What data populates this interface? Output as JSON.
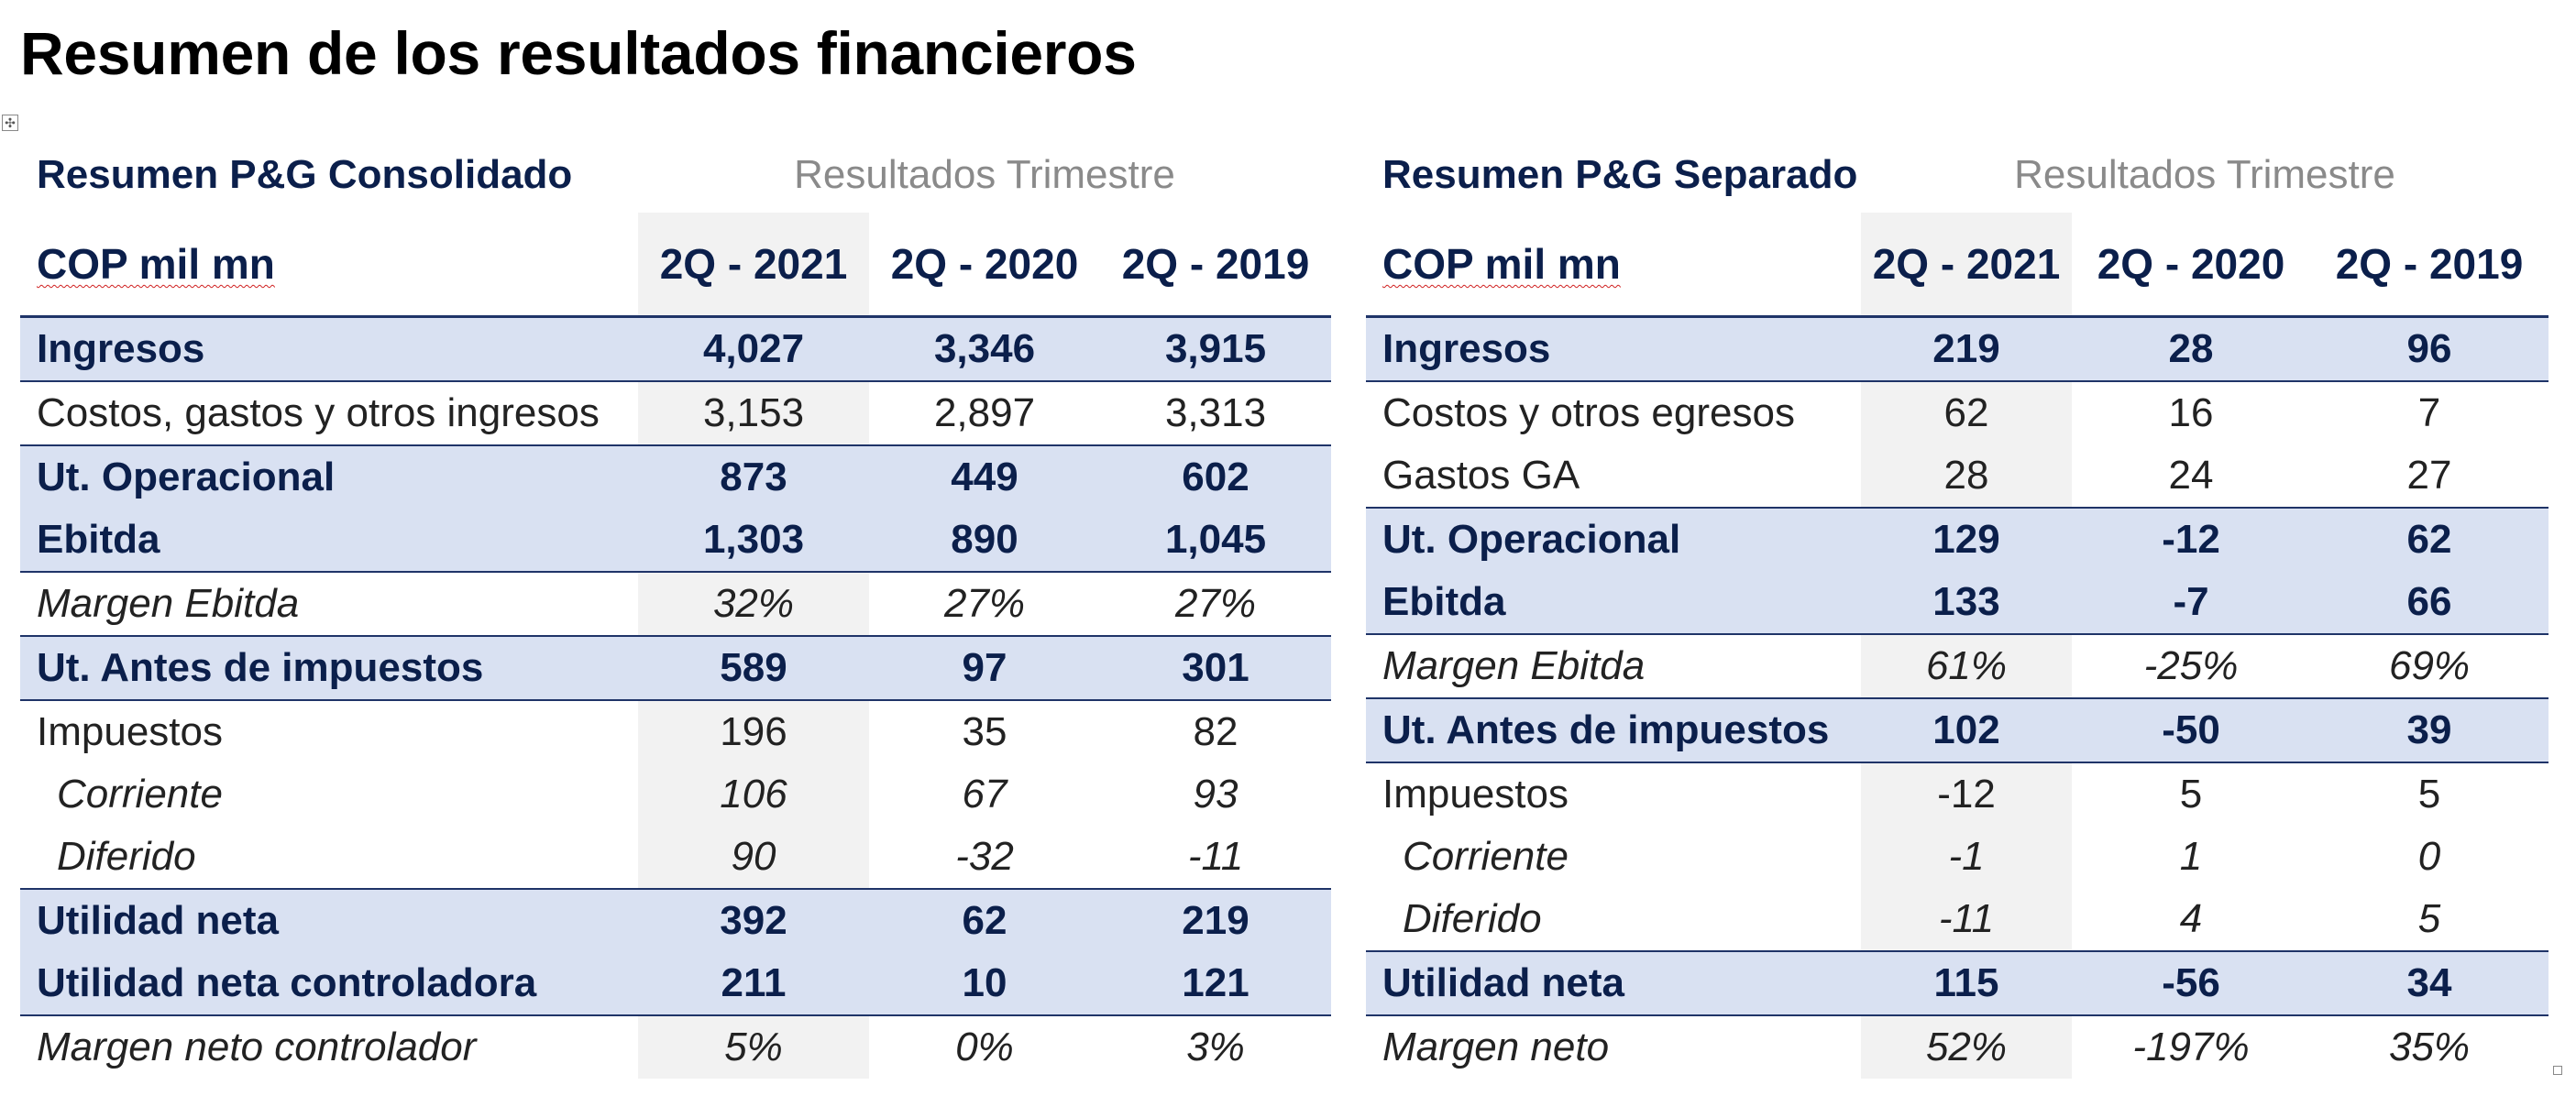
{
  "title": "Resumen de los resultados financieros",
  "consolidado": {
    "section": "Resumen P&G Consolidado",
    "period_label": "Resultados Trimestre",
    "unit": "COP mil mn",
    "columns": [
      "2Q - 2021",
      "2Q - 2020",
      "2Q - 2019"
    ],
    "rows": [
      {
        "label": "Ingresos",
        "values": [
          "4,027",
          "3,346",
          "3,915"
        ]
      },
      {
        "label": "Costos, gastos y otros ingresos",
        "values": [
          "3,153",
          "2,897",
          "3,313"
        ]
      },
      {
        "label": "Ut. Operacional",
        "values": [
          "873",
          "449",
          "602"
        ]
      },
      {
        "label": "Ebitda",
        "values": [
          "1,303",
          "890",
          "1,045"
        ]
      },
      {
        "label": "Margen Ebitda",
        "values": [
          "32%",
          "27%",
          "27%"
        ]
      },
      {
        "label": "Ut. Antes de impuestos",
        "values": [
          "589",
          "97",
          "301"
        ]
      },
      {
        "label": "Impuestos",
        "values": [
          "196",
          "35",
          "82"
        ]
      },
      {
        "label": "Corriente",
        "values": [
          "106",
          "67",
          "93"
        ]
      },
      {
        "label": "Diferido",
        "values": [
          "90",
          "-32",
          "-11"
        ]
      },
      {
        "label": "Utilidad neta",
        "values": [
          "392",
          "62",
          "219"
        ]
      },
      {
        "label": "Utilidad neta controladora",
        "values": [
          "211",
          "10",
          "121"
        ]
      },
      {
        "label": "Margen neto controlador",
        "values": [
          "5%",
          "0%",
          "3%"
        ]
      }
    ]
  },
  "separado": {
    "section": "Resumen P&G Separado",
    "period_label": "Resultados Trimestre",
    "unit": "COP mil mn",
    "columns": [
      "2Q - 2021",
      "2Q - 2020",
      "2Q - 2019"
    ],
    "rows": [
      {
        "label": "Ingresos",
        "values": [
          "219",
          "28",
          "96"
        ]
      },
      {
        "label": "Costos y otros egresos",
        "values": [
          "62",
          "16",
          "7"
        ]
      },
      {
        "label": "Gastos GA",
        "values": [
          "28",
          "24",
          "27"
        ]
      },
      {
        "label": "Ut. Operacional",
        "values": [
          "129",
          "-12",
          "62"
        ]
      },
      {
        "label": "Ebitda",
        "values": [
          "133",
          "-7",
          "66"
        ]
      },
      {
        "label": "Margen Ebitda",
        "values": [
          "61%",
          "-25%",
          "69%"
        ]
      },
      {
        "label": "Ut. Antes de impuestos",
        "values": [
          "102",
          "-50",
          "39"
        ]
      },
      {
        "label": "Impuestos",
        "values": [
          "-12",
          "5",
          "5"
        ]
      },
      {
        "label": "Corriente",
        "values": [
          "-1",
          "1",
          "0"
        ]
      },
      {
        "label": "Diferido",
        "values": [
          "-11",
          "4",
          "5"
        ]
      },
      {
        "label": "Utilidad neta",
        "values": [
          "115",
          "-56",
          "34"
        ]
      },
      {
        "label": "Margen neto",
        "values": [
          "52%",
          "-197%",
          "35%"
        ]
      }
    ]
  }
}
